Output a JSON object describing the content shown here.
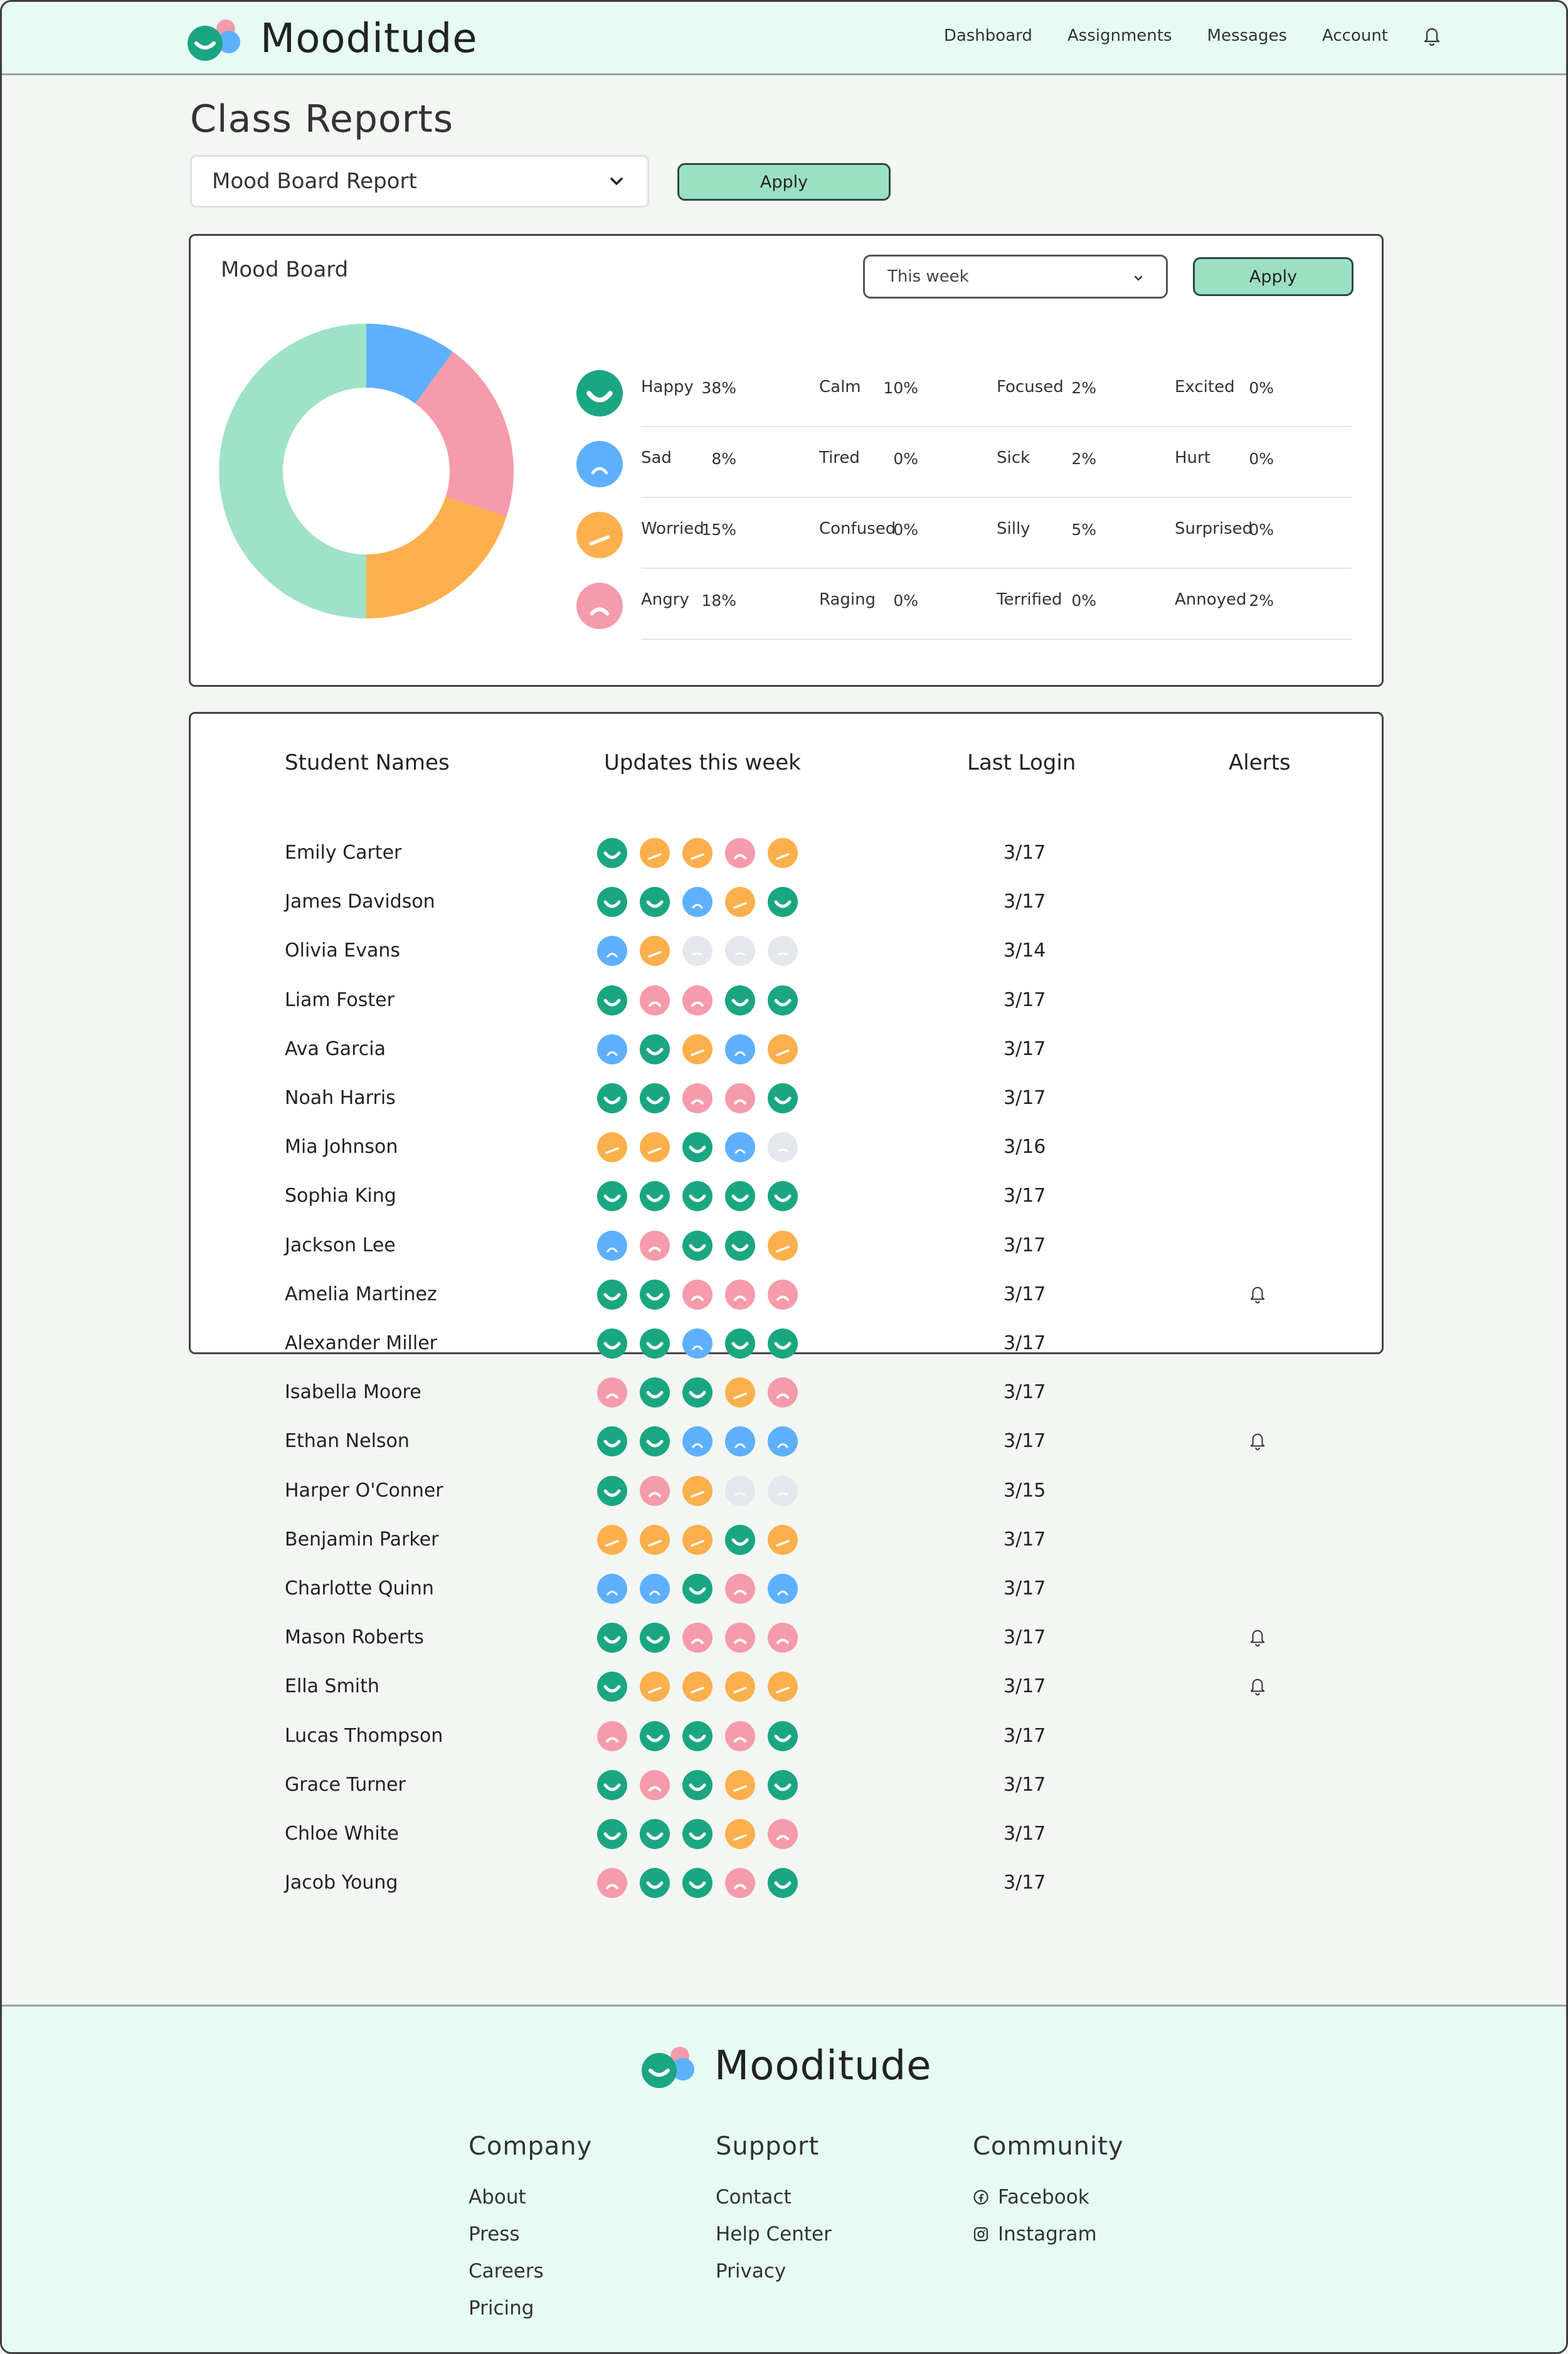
{
  "app": {
    "name": "Mooditude"
  },
  "nav": {
    "items": [
      {
        "label": "Dashboard"
      },
      {
        "label": "Assignments"
      },
      {
        "label": "Messages"
      },
      {
        "label": "Account"
      }
    ]
  },
  "page": {
    "title": "Class Reports",
    "report_select": "Mood Board Report",
    "apply_label": "Apply"
  },
  "mood_board": {
    "title": "Mood Board",
    "range_select": "This week",
    "apply_label": "Apply",
    "colors": {
      "happy": "#1aa681",
      "sad": "#5eb0ff",
      "worried": "#fbb04d",
      "angry": "#f59bab"
    },
    "rows": [
      {
        "face": "happy",
        "cells": [
          {
            "label": "Happy",
            "pct": "38%"
          },
          {
            "label": "Calm",
            "pct": "10%"
          },
          {
            "label": "Focused",
            "pct": "2%"
          },
          {
            "label": "Excited",
            "pct": "0%"
          }
        ]
      },
      {
        "face": "sad",
        "cells": [
          {
            "label": "Sad",
            "pct": "8%"
          },
          {
            "label": "Tired",
            "pct": "0%"
          },
          {
            "label": "Sick",
            "pct": "2%"
          },
          {
            "label": "Hurt",
            "pct": "0%"
          }
        ]
      },
      {
        "face": "worried",
        "cells": [
          {
            "label": "Worried",
            "pct": "15%"
          },
          {
            "label": "Confused",
            "pct": "0%"
          },
          {
            "label": "Silly",
            "pct": "5%"
          },
          {
            "label": "Surprised",
            "pct": "0%"
          }
        ]
      },
      {
        "face": "angry",
        "cells": [
          {
            "label": "Angry",
            "pct": "18%"
          },
          {
            "label": "Raging",
            "pct": "0%"
          },
          {
            "label": "Terrified",
            "pct": "0%"
          },
          {
            "label": "Annoyed",
            "pct": "2%"
          }
        ]
      }
    ]
  },
  "chart_data": {
    "type": "pie",
    "title": "Mood Board",
    "donut": true,
    "categories": [
      "Sad",
      "Angry",
      "Worried",
      "Happy"
    ],
    "values": [
      10,
      20,
      20,
      50
    ],
    "colors": [
      "#5eb0ff",
      "#f59bab",
      "#fbb04d",
      "#a0e2c7"
    ]
  },
  "students": {
    "headers": {
      "name": "Student Names",
      "updates": "Updates this week",
      "login": "Last Login",
      "alerts": "Alerts"
    },
    "rows": [
      {
        "name": "Emily Carter",
        "moods": [
          "happy",
          "worried",
          "worried",
          "angry",
          "worried"
        ],
        "login": "3/17",
        "alert": false
      },
      {
        "name": "James Davidson",
        "moods": [
          "happy",
          "happy",
          "sad",
          "worried",
          "happy"
        ],
        "login": "3/17",
        "alert": false
      },
      {
        "name": "Olivia Evans",
        "moods": [
          "sad",
          "worried",
          "none",
          "none",
          "none"
        ],
        "login": "3/14",
        "alert": false
      },
      {
        "name": "Liam Foster",
        "moods": [
          "happy",
          "angry",
          "angry",
          "happy",
          "happy"
        ],
        "login": "3/17",
        "alert": false
      },
      {
        "name": "Ava Garcia",
        "moods": [
          "sad",
          "happy",
          "worried",
          "sad",
          "worried"
        ],
        "login": "3/17",
        "alert": false
      },
      {
        "name": "Noah Harris",
        "moods": [
          "happy",
          "happy",
          "angry",
          "angry",
          "happy"
        ],
        "login": "3/17",
        "alert": false
      },
      {
        "name": "Mia Johnson",
        "moods": [
          "worried",
          "worried",
          "happy",
          "sad",
          "none"
        ],
        "login": "3/16",
        "alert": false
      },
      {
        "name": "Sophia King",
        "moods": [
          "happy",
          "happy",
          "happy",
          "happy",
          "happy"
        ],
        "login": "3/17",
        "alert": false
      },
      {
        "name": "Jackson Lee",
        "moods": [
          "sad",
          "angry",
          "happy",
          "happy",
          "worried"
        ],
        "login": "3/17",
        "alert": false
      },
      {
        "name": "Amelia Martinez",
        "moods": [
          "happy",
          "happy",
          "angry",
          "angry",
          "angry"
        ],
        "login": "3/17",
        "alert": true
      },
      {
        "name": "Alexander Miller",
        "moods": [
          "happy",
          "happy",
          "sad",
          "happy",
          "happy"
        ],
        "login": "3/17",
        "alert": false
      },
      {
        "name": "Isabella Moore",
        "moods": [
          "angry",
          "happy",
          "happy",
          "worried",
          "angry"
        ],
        "login": "3/17",
        "alert": false
      },
      {
        "name": "Ethan Nelson",
        "moods": [
          "happy",
          "happy",
          "sad",
          "sad",
          "sad"
        ],
        "login": "3/17",
        "alert": true
      },
      {
        "name": "Harper O'Conner",
        "moods": [
          "happy",
          "angry",
          "worried",
          "none",
          "none"
        ],
        "login": "3/15",
        "alert": false
      },
      {
        "name": "Benjamin Parker",
        "moods": [
          "worried",
          "worried",
          "worried",
          "happy",
          "worried"
        ],
        "login": "3/17",
        "alert": false
      },
      {
        "name": "Charlotte Quinn",
        "moods": [
          "sad",
          "sad",
          "happy",
          "angry",
          "sad"
        ],
        "login": "3/17",
        "alert": false
      },
      {
        "name": "Mason Roberts",
        "moods": [
          "happy",
          "happy",
          "angry",
          "angry",
          "angry"
        ],
        "login": "3/17",
        "alert": true
      },
      {
        "name": "Ella Smith",
        "moods": [
          "happy",
          "worried",
          "worried",
          "worried",
          "worried"
        ],
        "login": "3/17",
        "alert": true
      },
      {
        "name": "Lucas Thompson",
        "moods": [
          "angry",
          "happy",
          "happy",
          "angry",
          "happy"
        ],
        "login": "3/17",
        "alert": false
      },
      {
        "name": "Grace Turner",
        "moods": [
          "happy",
          "angry",
          "happy",
          "worried",
          "happy"
        ],
        "login": "3/17",
        "alert": false
      },
      {
        "name": "Chloe White",
        "moods": [
          "happy",
          "happy",
          "happy",
          "worried",
          "angry"
        ],
        "login": "3/17",
        "alert": false
      },
      {
        "name": "Jacob Young",
        "moods": [
          "angry",
          "happy",
          "happy",
          "angry",
          "happy"
        ],
        "login": "3/17",
        "alert": false
      }
    ]
  },
  "footer": {
    "brand": "Mooditude",
    "columns": [
      {
        "title": "Company",
        "links": [
          "About",
          "Press",
          "Careers",
          "Pricing"
        ]
      },
      {
        "title": "Support",
        "links": [
          "Contact",
          "Help Center",
          "Privacy"
        ]
      },
      {
        "title": "Community",
        "links": [
          "Facebook",
          "Instagram"
        ]
      }
    ]
  }
}
